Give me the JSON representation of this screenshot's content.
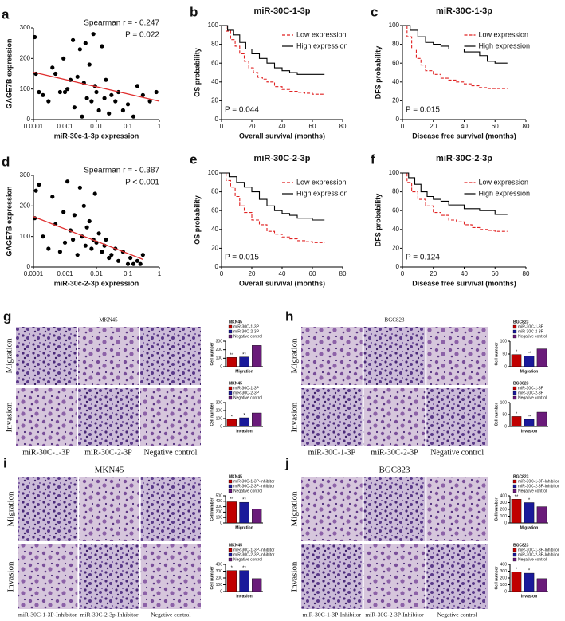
{
  "chart_data": [
    {
      "type": "scatter",
      "panel": "a",
      "xscale": "log",
      "xlabel": "miR-30c-1-3p expression",
      "ylabel": "GAGE7B expression",
      "annotations": [
        "Spearman r = - 0.247",
        "P = 0.022"
      ],
      "x": [
        0.00011,
        0.00012,
        0.00015,
        0.0002,
        0.0003,
        0.0004,
        0.0005,
        0.0007,
        0.0009,
        0.001,
        0.0012,
        0.0015,
        0.0018,
        0.002,
        0.0025,
        0.003,
        0.0035,
        0.004,
        0.0045,
        0.005,
        0.006,
        0.007,
        0.008,
        0.009,
        0.01,
        0.012,
        0.015,
        0.018,
        0.02,
        0.025,
        0.03,
        0.04,
        0.05,
        0.07,
        0.1,
        0.15,
        0.2,
        0.3,
        0.5,
        0.8
      ],
      "values": [
        270,
        150,
        90,
        80,
        60,
        170,
        150,
        90,
        200,
        90,
        100,
        130,
        260,
        40,
        140,
        230,
        10,
        120,
        250,
        70,
        180,
        60,
        280,
        110,
        90,
        30,
        240,
        70,
        130,
        20,
        80,
        60,
        90,
        30,
        50,
        10,
        110,
        80,
        60,
        90
      ],
      "color": "#000000",
      "trend": {
        "x": [
          0.0001,
          1
        ],
        "values": [
          155,
          60
        ],
        "color": "#e03030"
      },
      "xlim": [
        0.0001,
        1
      ],
      "xticks": [
        0.0001,
        0.001,
        0.01,
        0.1,
        1
      ],
      "ylim": [
        0,
        300
      ],
      "yticks": [
        0,
        100,
        200,
        300
      ]
    },
    {
      "type": "step",
      "panel": "b",
      "title": "miR-30C-1-3p",
      "xlabel": "Overall survival (months)",
      "ylabel": "OS probability",
      "annotations": [
        "P = 0.044"
      ],
      "series": [
        {
          "name": "Low expression",
          "color": "#e02020",
          "dashed": true,
          "x": [
            0,
            3,
            6,
            9,
            12,
            15,
            18,
            21,
            24,
            27,
            30,
            35,
            40,
            45,
            50,
            55,
            60,
            68
          ],
          "values": [
            100,
            94,
            85,
            78,
            70,
            62,
            55,
            50,
            45,
            43,
            40,
            35,
            32,
            30,
            29,
            28,
            27,
            27
          ]
        },
        {
          "name": "High expression",
          "color": "#000000",
          "dashed": false,
          "x": [
            0,
            4,
            8,
            12,
            16,
            20,
            25,
            30,
            35,
            40,
            45,
            50,
            55,
            60,
            68
          ],
          "values": [
            100,
            95,
            90,
            82,
            75,
            70,
            65,
            60,
            55,
            52,
            50,
            48,
            48,
            48,
            48
          ]
        }
      ],
      "xlim": [
        0,
        80
      ],
      "xticks": [
        0,
        20,
        40,
        60,
        80
      ],
      "ylim": [
        0,
        100
      ],
      "yticks": [
        0,
        20,
        40,
        60,
        80,
        100
      ]
    },
    {
      "type": "step",
      "panel": "c",
      "title": "miR-30C-1-3p",
      "xlabel": "Disease free survival (months)",
      "ylabel": "DFS probability",
      "annotations": [
        "P = 0.015"
      ],
      "series": [
        {
          "name": "Low expression",
          "color": "#e02020",
          "dashed": true,
          "x": [
            0,
            3,
            6,
            9,
            12,
            15,
            20,
            25,
            30,
            35,
            40,
            45,
            50,
            55,
            60,
            68
          ],
          "values": [
            100,
            88,
            75,
            65,
            58,
            52,
            48,
            44,
            42,
            40,
            38,
            36,
            34,
            33,
            33,
            33
          ]
        },
        {
          "name": "High expression",
          "color": "#000000",
          "dashed": false,
          "x": [
            0,
            5,
            10,
            15,
            20,
            25,
            30,
            40,
            50,
            55,
            60,
            68
          ],
          "values": [
            100,
            95,
            88,
            82,
            80,
            78,
            75,
            72,
            68,
            62,
            60,
            60
          ]
        }
      ],
      "xlim": [
        0,
        80
      ],
      "xticks": [
        0,
        20,
        40,
        60,
        80
      ],
      "ylim": [
        0,
        100
      ],
      "yticks": [
        0,
        20,
        40,
        60,
        80,
        100
      ]
    },
    {
      "type": "scatter",
      "panel": "d",
      "xscale": "log",
      "xlabel": "miR-30c-2-3p expression",
      "ylabel": "GAGE7B expression",
      "annotations": [
        "Spearman r = - 0.387",
        "P < 0.001"
      ],
      "x": [
        0.00011,
        0.00012,
        0.00015,
        0.0002,
        0.0003,
        0.0004,
        0.0005,
        0.0007,
        0.0009,
        0.001,
        0.0012,
        0.0015,
        0.0018,
        0.002,
        0.0025,
        0.003,
        0.0035,
        0.004,
        0.0045,
        0.005,
        0.006,
        0.007,
        0.008,
        0.009,
        0.01,
        0.012,
        0.015,
        0.018,
        0.02,
        0.025,
        0.03,
        0.04,
        0.05,
        0.07,
        0.1,
        0.12,
        0.15,
        0.2,
        0.25,
        0.3
      ],
      "values": [
        160,
        250,
        270,
        100,
        60,
        230,
        140,
        50,
        180,
        80,
        280,
        120,
        90,
        170,
        40,
        260,
        100,
        200,
        70,
        130,
        150,
        60,
        90,
        240,
        80,
        110,
        50,
        70,
        90,
        30,
        40,
        60,
        20,
        50,
        10,
        30,
        10,
        20,
        10,
        40
      ],
      "color": "#000000",
      "trend": {
        "x": [
          0.0001,
          0.3
        ],
        "values": [
          165,
          25
        ],
        "color": "#e03030"
      },
      "xlim": [
        0.0001,
        1
      ],
      "xticks": [
        0.0001,
        0.001,
        0.01,
        0.1,
        1
      ],
      "ylim": [
        0,
        300
      ],
      "yticks": [
        0,
        100,
        200,
        300
      ]
    },
    {
      "type": "step",
      "panel": "e",
      "title": "miR-30C-2-3p",
      "xlabel": "Overall survival (months)",
      "ylabel": "OS probability",
      "annotations": [
        "P = 0.015"
      ],
      "series": [
        {
          "name": "Low expression",
          "color": "#e02020",
          "dashed": true,
          "x": [
            0,
            3,
            6,
            9,
            12,
            15,
            20,
            25,
            30,
            35,
            40,
            45,
            50,
            55,
            60,
            68
          ],
          "values": [
            100,
            92,
            85,
            75,
            65,
            58,
            50,
            45,
            38,
            35,
            32,
            30,
            28,
            27,
            26,
            26
          ]
        },
        {
          "name": "High expression",
          "color": "#000000",
          "dashed": false,
          "x": [
            0,
            5,
            10,
            15,
            20,
            25,
            30,
            35,
            40,
            45,
            50,
            60,
            68
          ],
          "values": [
            100,
            96,
            90,
            85,
            80,
            72,
            65,
            60,
            57,
            55,
            52,
            50,
            50
          ]
        }
      ],
      "xlim": [
        0,
        80
      ],
      "xticks": [
        0,
        20,
        40,
        60,
        80
      ],
      "ylim": [
        0,
        100
      ],
      "yticks": [
        0,
        20,
        40,
        60,
        80,
        100
      ]
    },
    {
      "type": "step",
      "panel": "f",
      "title": "miR-30C-2-3p",
      "xlabel": "Disease free survival (months)",
      "ylabel": "DFS probability",
      "annotations": [
        "P = 0.124"
      ],
      "series": [
        {
          "name": "Low expression",
          "color": "#e02020",
          "dashed": true,
          "x": [
            0,
            3,
            6,
            10,
            15,
            20,
            25,
            30,
            35,
            40,
            45,
            50,
            55,
            60,
            68
          ],
          "values": [
            100,
            90,
            80,
            72,
            65,
            58,
            55,
            50,
            48,
            45,
            42,
            40,
            39,
            38,
            38
          ]
        },
        {
          "name": "High expression",
          "color": "#000000",
          "dashed": false,
          "x": [
            0,
            4,
            8,
            12,
            16,
            20,
            25,
            30,
            40,
            50,
            60,
            68
          ],
          "values": [
            100,
            95,
            88,
            80,
            75,
            72,
            70,
            66,
            62,
            60,
            56,
            56
          ]
        }
      ],
      "xlim": [
        0,
        80
      ],
      "xticks": [
        0,
        20,
        40,
        60,
        80
      ],
      "ylim": [
        0,
        100
      ],
      "yticks": [
        0,
        20,
        40,
        60,
        80,
        100
      ]
    },
    {
      "type": "bar",
      "title": "MKN45",
      "xlabel": "Migration",
      "ylabel": "Cell number",
      "categories": [
        "miR-30C-1-3P",
        "miR-30C-2-3P",
        "Negative control"
      ],
      "colors": [
        "#c00000",
        "#1a1a9a",
        "#6a1b7a"
      ],
      "values": [
        110,
        115,
        250
      ],
      "annotations": [
        "**",
        "**",
        null
      ],
      "ylim": [
        0,
        300
      ],
      "yticks": [
        0,
        100,
        200,
        300
      ]
    },
    {
      "type": "bar",
      "title": "MKN45",
      "xlabel": "Invasion",
      "ylabel": "Cell number",
      "categories": [
        "miR-30C-1-3P",
        "miR-30C-2-3P",
        "Negative control"
      ],
      "colors": [
        "#c00000",
        "#1a1a9a",
        "#6a1b7a"
      ],
      "values": [
        90,
        110,
        170
      ],
      "annotations": [
        "*",
        "*",
        null
      ],
      "ylim": [
        0,
        300
      ],
      "yticks": [
        0,
        100,
        200,
        300
      ]
    },
    {
      "type": "bar",
      "title": "BGC823",
      "xlabel": "Migration",
      "ylabel": "Cell number",
      "categories": [
        "miR-30C-1-3P",
        "miR-30C-2-3P",
        "Negative control"
      ],
      "colors": [
        "#c00000",
        "#1a1a9a",
        "#6a1b7a"
      ],
      "values": [
        48,
        42,
        70
      ],
      "annotations": [
        "*",
        "**",
        null
      ],
      "ylim": [
        0,
        100
      ],
      "yticks": [
        0,
        50,
        100
      ]
    },
    {
      "type": "bar",
      "title": "BGC823",
      "xlabel": "Invasion",
      "ylabel": "Cell number",
      "categories": [
        "miR-30C-1-3P",
        "miR-30C-2-3P",
        "Negative control"
      ],
      "colors": [
        "#c00000",
        "#1a1a9a",
        "#6a1b7a"
      ],
      "values": [
        42,
        30,
        60
      ],
      "annotations": [
        "*",
        "**",
        null
      ],
      "ylim": [
        0,
        100
      ],
      "yticks": [
        0,
        50,
        100
      ]
    },
    {
      "type": "bar",
      "title": "MKN45",
      "xlabel": "Migration",
      "ylabel": "Cell number",
      "categories": [
        "miR-30C-1-3P-Inhibitor",
        "miR-30C-2-3P-Inhibitor",
        "Negative control"
      ],
      "colors": [
        "#c00000",
        "#1a1a9a",
        "#6a1b7a"
      ],
      "values": [
        390,
        380,
        260
      ],
      "annotations": [
        "**",
        "**",
        null
      ],
      "ylim": [
        0,
        500
      ],
      "yticks": [
        0,
        100,
        200,
        300,
        400,
        500
      ]
    },
    {
      "type": "bar",
      "title": "MKN45",
      "xlabel": "Invasion",
      "ylabel": "Cell number",
      "categories": [
        "miR-30C-1-3P-Inhibitor",
        "miR-30C-2-3P-Inhibitor",
        "Negative control"
      ],
      "colors": [
        "#c00000",
        "#1a1a9a",
        "#6a1b7a"
      ],
      "values": [
        310,
        310,
        190
      ],
      "annotations": [
        "*",
        "**",
        null
      ],
      "ylim": [
        0,
        400
      ],
      "yticks": [
        0,
        100,
        200,
        300,
        400
      ]
    },
    {
      "type": "bar",
      "title": "BGC823",
      "xlabel": "Migration",
      "ylabel": "Cell number",
      "categories": [
        "miR-30C-1-3P-Inhibitor",
        "miR-30C-2-3P-Inhibitor",
        "Negative control"
      ],
      "colors": [
        "#c00000",
        "#1a1a9a",
        "#6a1b7a"
      ],
      "values": [
        350,
        300,
        240
      ],
      "annotations": [
        "**",
        "*",
        null
      ],
      "ylim": [
        0,
        400
      ],
      "yticks": [
        0,
        100,
        200,
        300,
        400
      ]
    },
    {
      "type": "bar",
      "title": "BGC823",
      "xlabel": "Invasion",
      "ylabel": "Cell number",
      "categories": [
        "miR-30C-1-3P-Inhibitor",
        "miR-30C-2-3P-Inhibitor",
        "Negative control"
      ],
      "colors": [
        "#c00000",
        "#1a1a9a",
        "#6a1b7a"
      ],
      "values": [
        290,
        270,
        190
      ],
      "annotations": [
        "*",
        "*",
        null
      ],
      "ylim": [
        0,
        400
      ],
      "yticks": [
        0,
        100,
        200,
        300,
        400
      ]
    }
  ],
  "image_panels": [
    {
      "label": "g",
      "title": "MKN45",
      "rows": [
        "Migration",
        "Invasion"
      ],
      "columns": [
        "miR-30C-1-3P",
        "miR-30C-2-3P",
        "Negative control"
      ]
    },
    {
      "label": "h",
      "title": "BGC823",
      "rows": [
        "Migration",
        "Invasion"
      ],
      "columns": [
        "miR-30C-1-3P",
        "miR-30C-2-3P",
        "Negative control"
      ]
    },
    {
      "label": "i",
      "title": "MKN45",
      "rows": [
        "Migration",
        "Invasion"
      ],
      "columns": [
        "miR-30C-1-3P-Inhibitor",
        "miR-30C-2-3p-Inhibitor",
        "Negative control"
      ]
    },
    {
      "label": "j",
      "title": "BGC823",
      "rows": [
        "Migration",
        "Invasion"
      ],
      "columns": [
        "miR-30C-1-3P-Inhibitor",
        "miR-30C-2-3P-Inhibitor",
        "Negative control"
      ]
    }
  ]
}
